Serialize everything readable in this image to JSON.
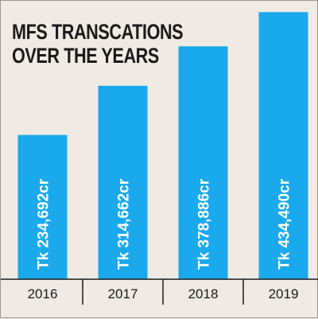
{
  "chart_data": {
    "type": "bar",
    "title_lines": [
      "MFS TRANSCATIONS",
      "OVER THE YEARS"
    ],
    "categories": [
      "2016",
      "2017",
      "2018",
      "2019"
    ],
    "values": [
      234692,
      314662,
      378886,
      434490
    ],
    "value_labels": [
      "Tk 234,692cr",
      "Tk 314,662cr",
      "Tk 378,886cr",
      "Tk 434,490cr"
    ],
    "unit": "Tk crore",
    "ylim": [
      0,
      440000
    ],
    "grid": false,
    "legend": "none",
    "bar_color": "#1aa9ec",
    "axis_color": "#1a1a1a",
    "label_orientation": "vertical"
  }
}
